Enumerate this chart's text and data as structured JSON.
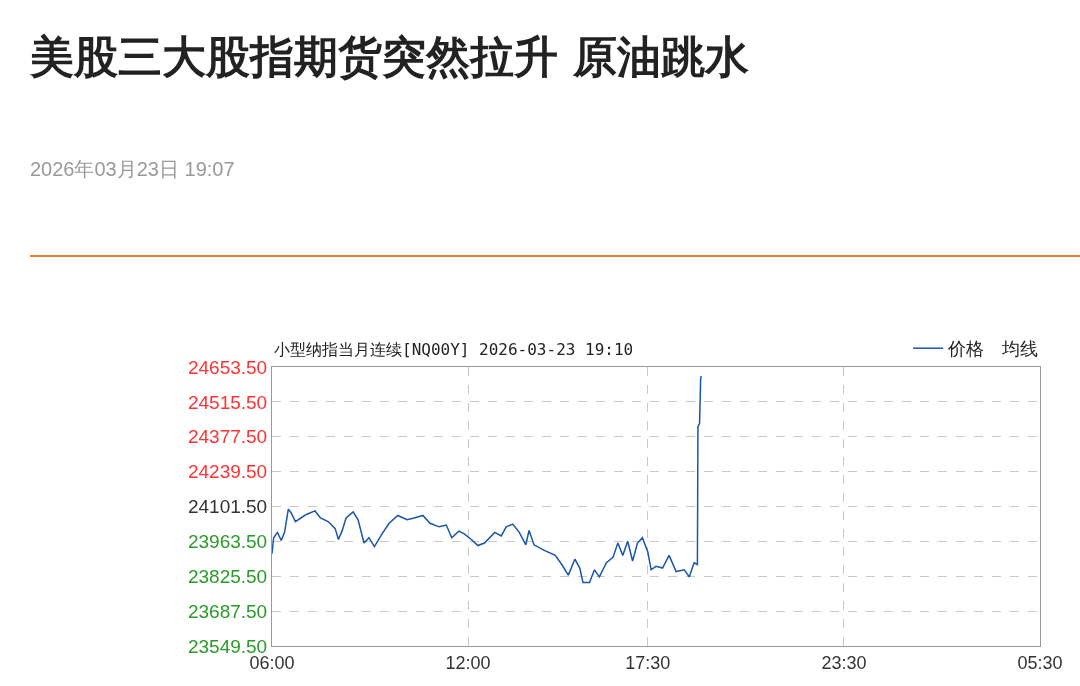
{
  "chart_data": {
    "type": "line",
    "title": "美股三大股指期货突然拉升 原油跳水",
    "subtitle": "2026年03月23日 19:07",
    "annotations": [
      "小型纳指当月连续[NQ00Y] 2026-03-23 19:10",
      "均线"
    ],
    "x": [
      "2026-03-23T06:00",
      "2026-03-23T06:03",
      "2026-03-23T06:10",
      "2026-03-23T06:17",
      "2026-03-23T06:23",
      "2026-03-23T06:30",
      "2026-03-23T06:35",
      "2026-03-23T06:43",
      "2026-03-23T06:53",
      "2026-03-23T07:03",
      "2026-03-23T07:19",
      "2026-03-23T07:29",
      "2026-03-23T07:43",
      "2026-03-23T07:56",
      "2026-03-23T08:02",
      "2026-03-23T08:09",
      "2026-03-23T08:16",
      "2026-03-23T08:29",
      "2026-03-23T08:38",
      "2026-03-23T08:49",
      "2026-03-23T08:58",
      "2026-03-23T09:08",
      "2026-03-23T09:22",
      "2026-03-23T09:35",
      "2026-03-23T09:51",
      "2026-03-23T10:08",
      "2026-03-23T10:21",
      "2026-03-23T10:37",
      "2026-03-23T10:50",
      "2026-03-23T11:07",
      "2026-03-23T11:20",
      "2026-03-23T11:30",
      "2026-03-23T11:43",
      "2026-03-23T11:53",
      "2026-03-23T12:06",
      "2026-03-23T12:18",
      "2026-03-23T12:30",
      "2026-03-23T12:49",
      "2026-03-23T13:01",
      "2026-03-23T13:10",
      "2026-03-23T13:22",
      "2026-03-23T13:34",
      "2026-03-23T13:46",
      "2026-03-23T13:52",
      "2026-03-23T14:01",
      "2026-03-23T14:19",
      "2026-03-23T14:40",
      "2026-03-23T14:52",
      "2026-03-23T15:04",
      "2026-03-23T15:16",
      "2026-03-23T15:25",
      "2026-03-23T15:31",
      "2026-03-23T15:43",
      "2026-03-23T15:52",
      "2026-03-23T16:01",
      "2026-03-23T16:14",
      "2026-03-23T16:26",
      "2026-03-23T16:35",
      "2026-03-23T16:44",
      "2026-03-23T16:53",
      "2026-03-23T17:02",
      "2026-03-23T17:11",
      "2026-03-23T17:20",
      "2026-03-23T17:30",
      "2026-03-23T17:36",
      "2026-03-23T17:45",
      "2026-03-23T17:57",
      "2026-03-23T18:09",
      "2026-03-23T18:22",
      "2026-03-23T18:37",
      "2026-03-23T18:46",
      "2026-03-23T18:55",
      "2026-03-23T19:01",
      "2026-03-23T19:02",
      "2026-03-23T19:05",
      "2026-03-23T19:07",
      "2026-03-23T19:08"
    ],
    "series": [
      {
        "name": "价格",
        "color": "#1a56a8",
        "values": [
          23915,
          23978,
          23999,
          23967,
          23999,
          24091,
          24077,
          24042,
          24056,
          24070,
          24084,
          24056,
          24042,
          24014,
          23971,
          24007,
          24056,
          24080,
          24049,
          23957,
          23978,
          23943,
          23993,
          24035,
          24066,
          24049,
          24056,
          24066,
          24035,
          24021,
          24028,
          23978,
          24004,
          23993,
          23971,
          23947,
          23957,
          23999,
          23985,
          24021,
          24032,
          23999,
          23950,
          24007,
          23950,
          23929,
          23908,
          23872,
          23830,
          23893,
          23858,
          23801,
          23801,
          23851,
          23823,
          23879,
          23900,
          23957,
          23908,
          23964,
          23886,
          23957,
          23978,
          23922,
          23851,
          23865,
          23858,
          23908,
          23844,
          23851,
          23823,
          23879,
          23872,
          24417,
          24431,
          24608,
          24618
        ]
      }
    ],
    "xlim": [
      "2026-03-23T06:00",
      "2026-03-24T05:30"
    ],
    "xticks": [
      {
        "value": "2026-03-23T06:00",
        "label": "06:00"
      },
      {
        "value": "2026-03-23T12:00",
        "label": "12:00"
      },
      {
        "value": "2026-03-23T17:30",
        "label": "17:30"
      },
      {
        "value": "2026-03-23T23:30",
        "label": "23:30"
      },
      {
        "value": "2026-03-24T05:30",
        "label": "05:30"
      }
    ],
    "ylim": [
      23549.5,
      24653.5
    ],
    "yticks": [
      {
        "value": 23549.5,
        "label": "23549.50"
      },
      {
        "value": 23687.5,
        "label": "23687.50"
      },
      {
        "value": 23825.5,
        "label": "23825.50"
      },
      {
        "value": 23963.5,
        "label": "23963.50"
      },
      {
        "value": 24101.5,
        "label": "24101.50"
      },
      {
        "value": 24239.5,
        "label": "24239.50"
      },
      {
        "value": 24377.5,
        "label": "24377.50"
      },
      {
        "value": 24515.5,
        "label": "24515.50"
      },
      {
        "value": 24653.5,
        "label": "24653.50"
      }
    ],
    "grid": true,
    "legend": "top right"
  }
}
